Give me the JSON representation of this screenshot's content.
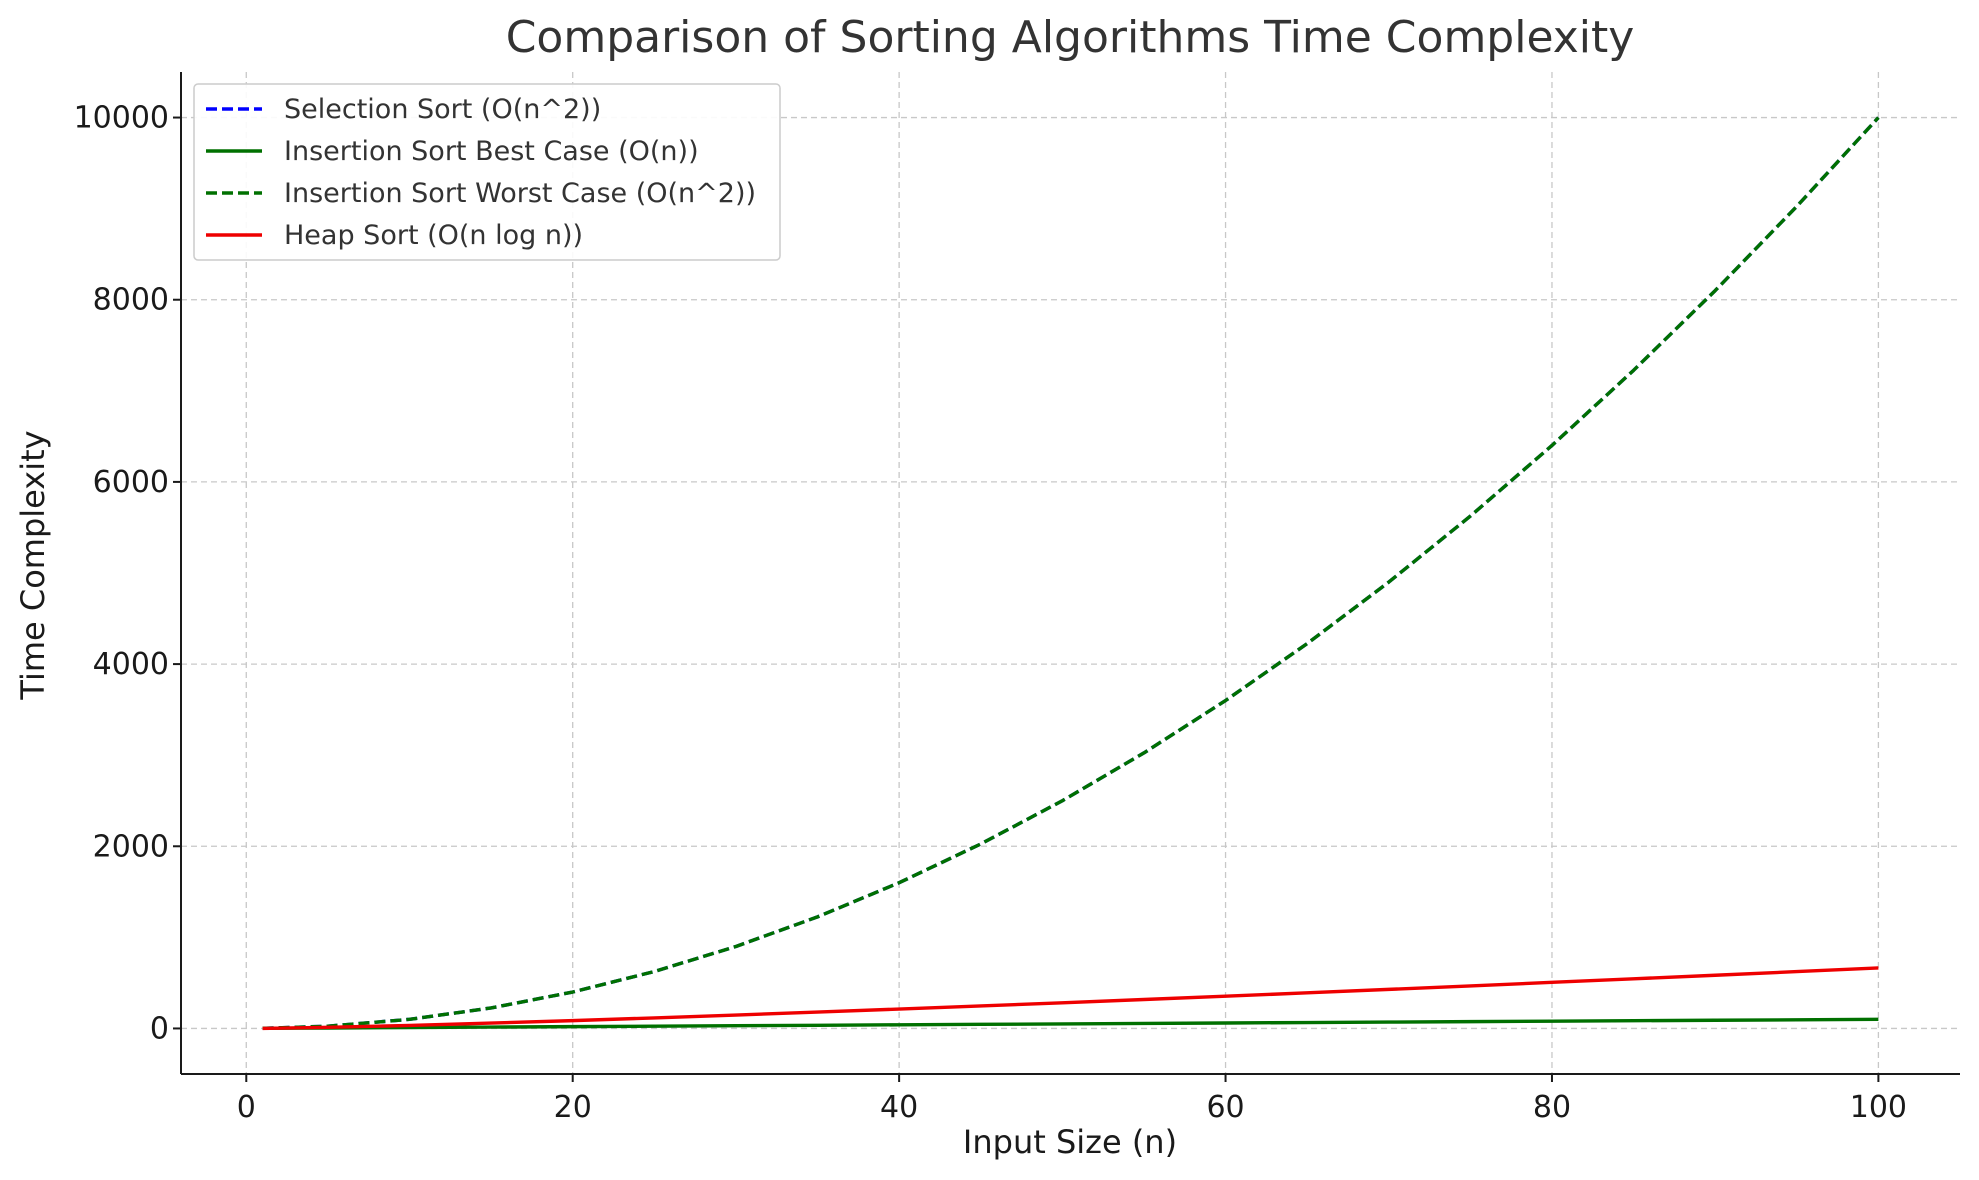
{
  "chart_data": {
    "type": "line",
    "title": "Comparison of Sorting Algorithms Time Complexity",
    "xlabel": "Input Size (n)",
    "ylabel": "Time Complexity",
    "xlim": [
      -4,
      105
    ],
    "ylim": [
      -500,
      10500
    ],
    "xticks": [
      0,
      20,
      40,
      60,
      80,
      100
    ],
    "yticks": [
      0,
      2000,
      4000,
      6000,
      8000,
      10000
    ],
    "grid": true,
    "legend_position": "top-left",
    "x": [
      1,
      5,
      10,
      15,
      20,
      25,
      30,
      35,
      40,
      45,
      50,
      55,
      60,
      65,
      70,
      75,
      80,
      85,
      90,
      95,
      100
    ],
    "series": [
      {
        "name": "Selection Sort (O(n^2))",
        "color": "#0000ff",
        "style": "dashed",
        "values": [
          1,
          25,
          100,
          225,
          400,
          625,
          900,
          1225,
          1600,
          2025,
          2500,
          3025,
          3600,
          4225,
          4900,
          5625,
          6400,
          7225,
          8100,
          9025,
          10000
        ]
      },
      {
        "name": "Insertion Sort Best Case (O(n))",
        "color": "#007000",
        "style": "solid",
        "values": [
          1,
          5,
          10,
          15,
          20,
          25,
          30,
          35,
          40,
          45,
          50,
          55,
          60,
          65,
          70,
          75,
          80,
          85,
          90,
          95,
          100
        ]
      },
      {
        "name": "Insertion Sort Worst Case (O(n^2))",
        "color": "#007000",
        "style": "dashed",
        "values": [
          1,
          25,
          100,
          225,
          400,
          625,
          900,
          1225,
          1600,
          2025,
          2500,
          3025,
          3600,
          4225,
          4900,
          5625,
          6400,
          7225,
          8100,
          9025,
          10000
        ]
      },
      {
        "name": "Heap Sort (O(n log n))",
        "color": "#ee0000",
        "style": "solid",
        "values": [
          0,
          12,
          33,
          59,
          86,
          116,
          147,
          180,
          213,
          247,
          282,
          318,
          354,
          391,
          429,
          467,
          506,
          545,
          584,
          624,
          664
        ]
      }
    ]
  }
}
